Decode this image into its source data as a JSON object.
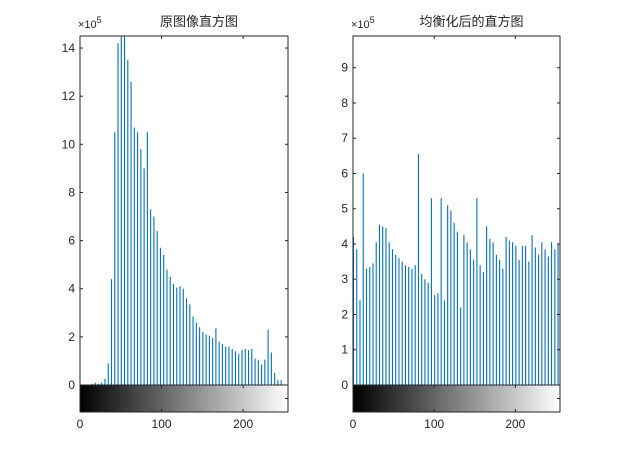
{
  "chart_data": [
    {
      "type": "bar",
      "title": "原图像直方图",
      "xlabel": "",
      "ylabel": "",
      "y_exponent_label": "×10",
      "y_exponent": "5",
      "xlim": [
        0,
        255
      ],
      "ylim": [
        0,
        14.5
      ],
      "xticks": [
        "0",
        "100",
        "200"
      ],
      "yticks": [
        "0",
        "2",
        "4",
        "6",
        "8",
        "10",
        "12",
        "14"
      ],
      "bar_color": "#0072BD",
      "bin_width": 4,
      "x_start": 14,
      "values": [
        0.05,
        0.1,
        0.05,
        0.1,
        0.25,
        0.9,
        4.4,
        10.5,
        14.2,
        14.5,
        14.5,
        13.5,
        12.6,
        10.7,
        10.5,
        9.8,
        9.0,
        10.5,
        7.3,
        7.0,
        6.4,
        5.7,
        5.4,
        4.8,
        4.5,
        4.2,
        4.05,
        4.1,
        4.0,
        3.6,
        3.35,
        2.85,
        2.6,
        2.4,
        2.2,
        2.1,
        2.05,
        1.95,
        2.35,
        1.8,
        1.7,
        1.6,
        1.6,
        1.5,
        1.4,
        1.3,
        1.45,
        1.5,
        1.45,
        1.5,
        1.1,
        1.05,
        0.85,
        1.05,
        2.3,
        1.35,
        0.5,
        0.2,
        0.2
      ],
      "colorbar": "grayscale 0-255"
    },
    {
      "type": "bar",
      "title": "均衡化后的直方图",
      "xlabel": "",
      "ylabel": "",
      "y_exponent_label": "×10",
      "y_exponent": "5",
      "xlim": [
        0,
        255
      ],
      "ylim": [
        0,
        9.9
      ],
      "xticks": [
        "0",
        "100",
        "200"
      ],
      "yticks": [
        "0",
        "1",
        "2",
        "3",
        "4",
        "5",
        "6",
        "7",
        "8",
        "9"
      ],
      "bar_color": "#0072BD",
      "bin_width": 4,
      "x_start": 0,
      "values": [
        4.2,
        3.85,
        2.4,
        6.0,
        3.3,
        3.35,
        3.45,
        4.05,
        4.55,
        4.5,
        4.45,
        4.05,
        3.85,
        3.7,
        3.6,
        3.5,
        3.4,
        3.35,
        3.3,
        3.4,
        6.55,
        3.15,
        3.0,
        2.9,
        5.3,
        2.55,
        2.6,
        5.3,
        2.4,
        5.1,
        4.95,
        4.6,
        4.35,
        2.2,
        4.25,
        4.05,
        3.85,
        3.55,
        5.3,
        3.4,
        3.2,
        4.5,
        4.15,
        4.05,
        3.7,
        3.55,
        3.3,
        4.2,
        4.1,
        4.05,
        3.95,
        3.55,
        3.95,
        3.95,
        3.5,
        4.25,
        3.9,
        3.7,
        4.05,
        3.85,
        3.65,
        4.05,
        3.85,
        4.0
      ],
      "colorbar": "grayscale 0-255"
    }
  ]
}
